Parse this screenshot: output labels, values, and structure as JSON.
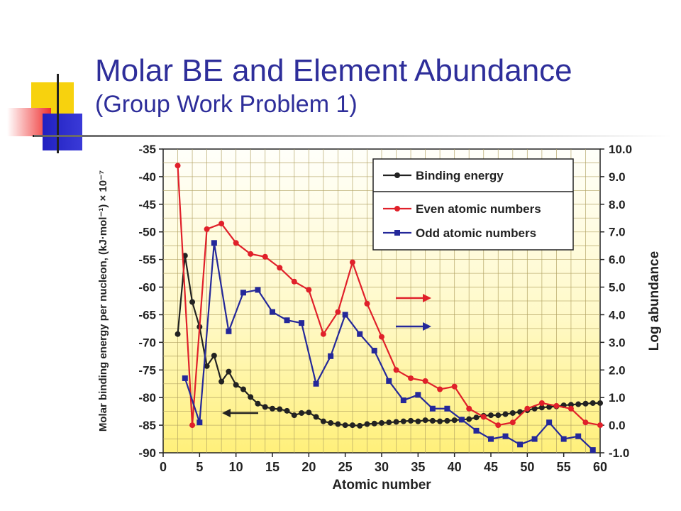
{
  "slide": {
    "title": "Molar BE and Element Abundance",
    "subtitle": "(Group Work Problem 1)"
  },
  "colors": {
    "title": "#2e2e9a",
    "binding": "#222222",
    "even": "#e0202a",
    "odd": "#24289a",
    "grid": "#b0a060"
  },
  "chart_data": {
    "type": "line",
    "xlabel": "Atomic number",
    "ylabel_left": "Molar binding energy per nucleon, (kJ·mol⁻¹) × 10⁻⁷",
    "ylabel_right": "Log abundance",
    "xlim": [
      0,
      60
    ],
    "ylim_left": [
      -90,
      -35
    ],
    "ylim_right": [
      -1.0,
      10.0
    ],
    "x_ticks": [
      "0",
      "5",
      "10",
      "15",
      "20",
      "25",
      "30",
      "35",
      "40",
      "45",
      "50",
      "55",
      "60"
    ],
    "y_left_ticks": [
      "-35",
      "-40",
      "-45",
      "-50",
      "-55",
      "-60",
      "-65",
      "-70",
      "-75",
      "-80",
      "-85",
      "-90"
    ],
    "y_right_ticks": [
      "10.0",
      "9.0",
      "8.0",
      "7.0",
      "6.0",
      "5.0",
      "4.0",
      "3.0",
      "2.0",
      "1.0",
      "0.0",
      "-1.0"
    ],
    "grid": true,
    "legend_position": "top-right",
    "series": [
      {
        "name": "Binding energy",
        "axis": "left",
        "marker": "circle",
        "x": [
          2,
          3,
          4,
          5,
          6,
          7,
          8,
          9,
          10,
          11,
          12,
          13,
          14,
          15,
          16,
          17,
          18,
          19,
          20,
          21,
          22,
          23,
          24,
          25,
          26,
          27,
          28,
          29,
          30,
          31,
          32,
          33,
          34,
          35,
          36,
          37,
          38,
          39,
          40,
          41,
          42,
          43,
          44,
          45,
          46,
          47,
          48,
          49,
          50,
          51,
          52,
          53,
          54,
          55,
          56,
          57,
          58,
          59,
          60
        ],
        "values": [
          -68.5,
          -54.3,
          -62.7,
          -67.2,
          -74.3,
          -72.4,
          -77.1,
          -75.3,
          -77.7,
          -78.5,
          -79.9,
          -81.1,
          -81.7,
          -82.0,
          -82.1,
          -82.4,
          -83.2,
          -82.8,
          -82.7,
          -83.5,
          -84.3,
          -84.6,
          -84.8,
          -85.0,
          -85.0,
          -85.1,
          -84.8,
          -84.7,
          -84.6,
          -84.5,
          -84.4,
          -84.3,
          -84.2,
          -84.3,
          -84.1,
          -84.2,
          -84.3,
          -84.2,
          -84.1,
          -84.0,
          -83.9,
          -83.6,
          -83.3,
          -83.2,
          -83.2,
          -83.0,
          -82.8,
          -82.6,
          -82.3,
          -82.0,
          -81.8,
          -81.7,
          -81.6,
          -81.4,
          -81.3,
          -81.2,
          -81.1,
          -81.0,
          -81.0
        ]
      },
      {
        "name": "Even atomic numbers",
        "axis": "right",
        "marker": "circle",
        "x": [
          2,
          4,
          6,
          8,
          10,
          12,
          14,
          16,
          18,
          20,
          22,
          24,
          26,
          28,
          30,
          32,
          34,
          36,
          38,
          40,
          42,
          44,
          46,
          48,
          50,
          52,
          54,
          56,
          58,
          60
        ],
        "values": [
          9.4,
          0.0,
          7.1,
          7.3,
          6.6,
          6.2,
          6.1,
          5.7,
          5.2,
          4.9,
          3.3,
          4.1,
          5.9,
          4.4,
          3.2,
          2.0,
          1.7,
          1.6,
          1.3,
          1.4,
          0.6,
          0.3,
          0.0,
          0.1,
          0.6,
          0.8,
          0.7,
          0.6,
          0.1,
          0.0
        ]
      },
      {
        "name": "Odd atomic numbers",
        "axis": "right",
        "marker": "square",
        "x": [
          3,
          5,
          7,
          9,
          11,
          13,
          15,
          17,
          19,
          21,
          23,
          25,
          27,
          29,
          31,
          33,
          35,
          37,
          39,
          41,
          43,
          45,
          47,
          49,
          51,
          53,
          55,
          57,
          59
        ],
        "values": [
          1.7,
          0.1,
          6.6,
          3.4,
          4.8,
          4.9,
          4.1,
          3.8,
          3.7,
          1.5,
          2.5,
          4.0,
          3.3,
          2.7,
          1.6,
          0.9,
          1.1,
          0.6,
          0.6,
          0.2,
          -0.2,
          -0.5,
          -0.4,
          -0.7,
          -0.5,
          0.1,
          -0.5,
          -0.4,
          -0.9
        ]
      }
    ]
  }
}
